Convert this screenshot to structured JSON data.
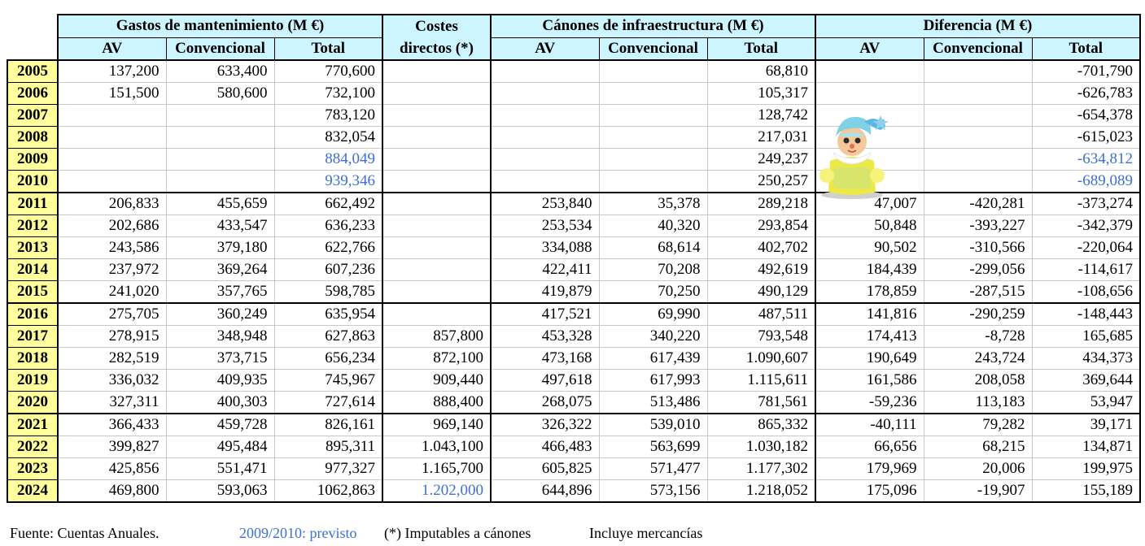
{
  "headers": {
    "gastos": "Gastos de mantenimiento (M €)",
    "costes_line1": "Costes",
    "costes_line2": "directos (*)",
    "canones": "Cánones de infraestructura (M €)",
    "diferencia": "Diferencia (M €)",
    "av": "AV",
    "convencional": "Convencional",
    "total": "Total"
  },
  "rows": [
    {
      "year": "2005",
      "g_av": "137,200",
      "g_conv": "633,400",
      "g_total": "770,600",
      "costes": "",
      "c_av": "",
      "c_conv": "",
      "c_total": "68,810",
      "d_av": "",
      "d_conv": "",
      "d_total": "-701,790"
    },
    {
      "year": "2006",
      "g_av": "151,500",
      "g_conv": "580,600",
      "g_total": "732,100",
      "costes": "",
      "c_av": "",
      "c_conv": "",
      "c_total": "105,317",
      "d_av": "",
      "d_conv": "",
      "d_total": "-626,783"
    },
    {
      "year": "2007",
      "g_av": "",
      "g_conv": "",
      "g_total": "783,120",
      "costes": "",
      "c_av": "",
      "c_conv": "",
      "c_total": "128,742",
      "d_av": "",
      "d_conv": "",
      "d_total": "-654,378"
    },
    {
      "year": "2008",
      "g_av": "",
      "g_conv": "",
      "g_total": "832,054",
      "costes": "",
      "c_av": "",
      "c_conv": "",
      "c_total": "217,031",
      "d_av": "",
      "d_conv": "",
      "d_total": "-615,023"
    },
    {
      "year": "2009",
      "g_av": "",
      "g_conv": "",
      "g_total": "884,049",
      "costes": "",
      "c_av": "",
      "c_conv": "",
      "c_total": "249,237",
      "d_av": "",
      "d_conv": "",
      "d_total": "-634,812",
      "forecast": true
    },
    {
      "year": "2010",
      "g_av": "",
      "g_conv": "",
      "g_total": "939,346",
      "costes": "",
      "c_av": "",
      "c_conv": "",
      "c_total": "250,257",
      "d_av": "",
      "d_conv": "",
      "d_total": "-689,089",
      "forecast": true
    },
    {
      "year": "2011",
      "g_av": "206,833",
      "g_conv": "455,659",
      "g_total": "662,492",
      "costes": "",
      "c_av": "253,840",
      "c_conv": "35,378",
      "c_total": "289,218",
      "d_av": "47,007",
      "d_conv": "-420,281",
      "d_total": "-373,274"
    },
    {
      "year": "2012",
      "g_av": "202,686",
      "g_conv": "433,547",
      "g_total": "636,233",
      "costes": "",
      "c_av": "253,534",
      "c_conv": "40,320",
      "c_total": "293,854",
      "d_av": "50,848",
      "d_conv": "-393,227",
      "d_total": "-342,379"
    },
    {
      "year": "2013",
      "g_av": "243,586",
      "g_conv": "379,180",
      "g_total": "622,766",
      "costes": "",
      "c_av": "334,088",
      "c_conv": "68,614",
      "c_total": "402,702",
      "d_av": "90,502",
      "d_conv": "-310,566",
      "d_total": "-220,064"
    },
    {
      "year": "2014",
      "g_av": "237,972",
      "g_conv": "369,264",
      "g_total": "607,236",
      "costes": "",
      "c_av": "422,411",
      "c_conv": "70,208",
      "c_total": "492,619",
      "d_av": "184,439",
      "d_conv": "-299,056",
      "d_total": "-114,617"
    },
    {
      "year": "2015",
      "g_av": "241,020",
      "g_conv": "357,765",
      "g_total": "598,785",
      "costes": "",
      "c_av": "419,879",
      "c_conv": "70,250",
      "c_total": "490,129",
      "d_av": "178,859",
      "d_conv": "-287,515",
      "d_total": "-108,656"
    },
    {
      "year": "2016",
      "g_av": "275,705",
      "g_conv": "360,249",
      "g_total": "635,954",
      "costes": "",
      "c_av": "417,521",
      "c_conv": "69,990",
      "c_total": "487,511",
      "d_av": "141,816",
      "d_conv": "-290,259",
      "d_total": "-148,443"
    },
    {
      "year": "2017",
      "g_av": "278,915",
      "g_conv": "348,948",
      "g_total": "627,863",
      "costes": "857,800",
      "c_av": "453,328",
      "c_conv": "340,220",
      "c_total": "793,548",
      "d_av": "174,413",
      "d_conv": "-8,728",
      "d_total": "165,685"
    },
    {
      "year": "2018",
      "g_av": "282,519",
      "g_conv": "373,715",
      "g_total": "656,234",
      "costes": "872,100",
      "c_av": "473,168",
      "c_conv": "617,439",
      "c_total": "1.090,607",
      "d_av": "190,649",
      "d_conv": "243,724",
      "d_total": "434,373"
    },
    {
      "year": "2019",
      "g_av": "336,032",
      "g_conv": "409,935",
      "g_total": "745,967",
      "costes": "909,440",
      "c_av": "497,618",
      "c_conv": "617,993",
      "c_total": "1.115,611",
      "d_av": "161,586",
      "d_conv": "208,058",
      "d_total": "369,644"
    },
    {
      "year": "2020",
      "g_av": "327,311",
      "g_conv": "400,303",
      "g_total": "727,614",
      "costes": "888,400",
      "c_av": "268,075",
      "c_conv": "513,486",
      "c_total": "781,561",
      "d_av": "-59,236",
      "d_conv": "113,183",
      "d_total": "53,947"
    },
    {
      "year": "2021",
      "g_av": "366,433",
      "g_conv": "459,728",
      "g_total": "826,161",
      "costes": "969,140",
      "c_av": "326,322",
      "c_conv": "539,010",
      "c_total": "865,332",
      "d_av": "-40,111",
      "d_conv": "79,282",
      "d_total": "39,171"
    },
    {
      "year": "2022",
      "g_av": "399,827",
      "g_conv": "495,484",
      "g_total": "895,311",
      "costes": "1.043,100",
      "c_av": "466,483",
      "c_conv": "563,699",
      "c_total": "1.030,182",
      "d_av": "66,656",
      "d_conv": "68,215",
      "d_total": "134,871"
    },
    {
      "year": "2023",
      "g_av": "425,856",
      "g_conv": "551,471",
      "g_total": "977,327",
      "costes": "1.165,700",
      "c_av": "605,825",
      "c_conv": "571,477",
      "c_total": "1.177,302",
      "d_av": "179,969",
      "d_conv": "20,006",
      "d_total": "199,975"
    },
    {
      "year": "2024",
      "g_av": "469,800",
      "g_conv": "593,063",
      "g_total": "1062,863",
      "costes": "1.202,000",
      "costes_blue": true,
      "c_av": "644,896",
      "c_conv": "573,156",
      "c_total": "1.218,052",
      "d_av": "175,096",
      "d_conv": "-19,907",
      "d_total": "155,189"
    }
  ],
  "footer": {
    "source": "Fuente: Cuentas Anuales.",
    "forecast_note": "2009/2010: previsto",
    "costes_note": "(*) Imputables a cánones",
    "freight_note": "Incluye mercancías"
  },
  "colors": {
    "header_bg": "#ccf5ff",
    "year_bg": "#ffff9c",
    "forecast_text": "#3e6fd1"
  },
  "icons": {
    "mascot": "clown-doll-icon"
  }
}
